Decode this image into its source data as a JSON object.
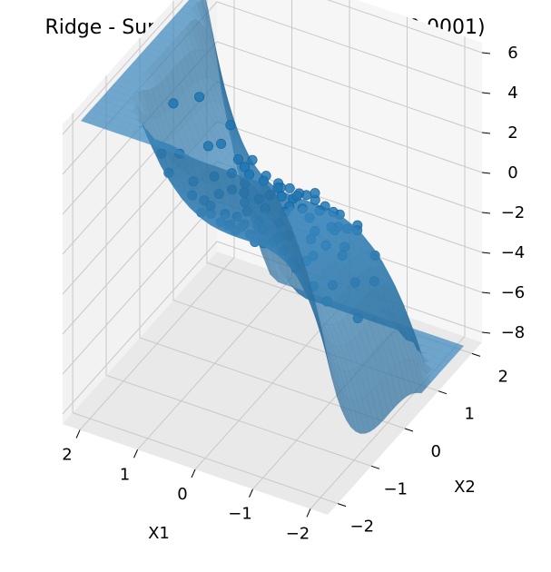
{
  "chart_data": {
    "type": "scatter",
    "subtype": "3d-surface-with-scatter",
    "title": "Ridge - Superficie de predicción (C=0.0001)",
    "xlabel": "X1",
    "ylabel": "X2",
    "zlabel": "",
    "xlim": [
      -2.3,
      2.3
    ],
    "ylim": [
      -2.3,
      2.3
    ],
    "zlim": [
      -8.5,
      6.5
    ],
    "x_ticks": [
      -2,
      -1,
      0,
      1,
      2
    ],
    "y_ticks": [
      -2,
      -1,
      0,
      1,
      2
    ],
    "z_ticks": [
      -8,
      -6,
      -4,
      -2,
      0,
      2,
      4,
      6
    ],
    "x_tick_labels": [
      "−2",
      "−1",
      "0",
      "1",
      "2"
    ],
    "y_tick_labels": [
      "−2",
      "−1",
      "0",
      "1",
      "2"
    ],
    "z_tick_labels": [
      "−8",
      "−6",
      "−4",
      "−2",
      "0",
      "2",
      "4",
      "6"
    ],
    "surface": {
      "model": "z = x^3 - y^3 + 0.35*x^2 - 0.35*y^2",
      "x_range": [
        -2.1,
        2.1
      ],
      "y_range": [
        -2.1,
        2.1
      ],
      "color": "#1f77b4",
      "alpha": 0.7
    },
    "points": {
      "color": "#1f77b4",
      "values": [
        {
          "x": -0.42,
          "y": 0.55,
          "z": 0.4
        },
        {
          "x": 0.31,
          "y": -0.22,
          "z": 0.2
        },
        {
          "x": -0.8,
          "y": -0.37,
          "z": -0.9
        },
        {
          "x": 0.65,
          "y": 0.43,
          "z": 0.5
        },
        {
          "x": 0.05,
          "y": 1.1,
          "z": -1.2
        },
        {
          "x": -1.1,
          "y": 0.2,
          "z": -1.4
        },
        {
          "x": 0.9,
          "y": -0.85,
          "z": 1.6
        },
        {
          "x": -0.25,
          "y": -0.95,
          "z": 0.6
        },
        {
          "x": 0.42,
          "y": 0.9,
          "z": -0.6
        },
        {
          "x": -0.6,
          "y": 0.98,
          "z": -1.3
        },
        {
          "x": 1.2,
          "y": 0.15,
          "z": 1.9
        },
        {
          "x": -0.15,
          "y": 0.12,
          "z": 0.0
        },
        {
          "x": 0.18,
          "y": -0.62,
          "z": 0.3
        },
        {
          "x": -0.92,
          "y": 0.66,
          "z": -1.1
        },
        {
          "x": 0.75,
          "y": -0.3,
          "z": 0.8
        },
        {
          "x": -0.35,
          "y": -0.4,
          "z": -0.1
        },
        {
          "x": 0.55,
          "y": 0.1,
          "z": 0.3
        },
        {
          "x": -1.3,
          "y": -0.6,
          "z": -2.0
        },
        {
          "x": 0.0,
          "y": -1.25,
          "z": 1.8
        },
        {
          "x": 1.0,
          "y": 0.7,
          "z": 0.4
        },
        {
          "x": -0.7,
          "y": -0.05,
          "z": -0.5
        },
        {
          "x": 0.25,
          "y": 0.35,
          "z": 0.0
        },
        {
          "x": -0.05,
          "y": 0.65,
          "z": -0.3
        },
        {
          "x": 0.62,
          "y": -1.05,
          "z": 1.4
        },
        {
          "x": -0.5,
          "y": 0.25,
          "z": -0.2
        },
        {
          "x": 1.35,
          "y": -0.45,
          "z": 2.5
        },
        {
          "x": -1.0,
          "y": -1.0,
          "z": 0.1
        },
        {
          "x": 0.4,
          "y": 1.3,
          "z": -2.1
        },
        {
          "x": -0.2,
          "y": -0.15,
          "z": 0.0
        },
        {
          "x": 0.85,
          "y": 0.25,
          "z": 0.7
        },
        {
          "x": -0.78,
          "y": 0.42,
          "z": -0.7
        },
        {
          "x": 0.12,
          "y": -0.9,
          "z": 0.7
        },
        {
          "x": -1.45,
          "y": 0.55,
          "z": -3.0
        },
        {
          "x": 0.5,
          "y": -0.55,
          "z": 0.5
        },
        {
          "x": -0.3,
          "y": 1.45,
          "z": -3.1
        },
        {
          "x": 1.1,
          "y": -1.2,
          "z": 3.2
        },
        {
          "x": -0.62,
          "y": -0.72,
          "z": 0.1
        },
        {
          "x": 0.3,
          "y": 0.68,
          "z": -0.3
        },
        {
          "x": -1.2,
          "y": 1.0,
          "z": -2.8
        },
        {
          "x": 0.72,
          "y": 1.05,
          "z": -0.8
        },
        {
          "x": -0.1,
          "y": -0.45,
          "z": 0.1
        },
        {
          "x": 0.95,
          "y": -0.1,
          "z": 1.1
        },
        {
          "x": -0.88,
          "y": -0.3,
          "z": -0.7
        },
        {
          "x": 0.15,
          "y": 0.05,
          "z": 0.0
        },
        {
          "x": -0.45,
          "y": 0.8,
          "z": -0.7
        },
        {
          "x": 1.5,
          "y": 0.4,
          "z": 3.6
        },
        {
          "x": -1.6,
          "y": -0.2,
          "z": -3.3
        },
        {
          "x": 0.2,
          "y": -1.5,
          "z": 3.0
        },
        {
          "x": -0.15,
          "y": 1.6,
          "z": -3.7
        },
        {
          "x": 0.45,
          "y": -0.05,
          "z": 0.2
        },
        {
          "x": -0.55,
          "y": -1.2,
          "z": 1.3
        },
        {
          "x": 0.8,
          "y": 0.55,
          "z": 0.5
        },
        {
          "x": -1.05,
          "y": 0.35,
          "z": -1.3
        },
        {
          "x": 0.1,
          "y": 0.45,
          "z": -0.1
        },
        {
          "x": 0.6,
          "y": -0.8,
          "z": 0.9
        },
        {
          "x": -0.32,
          "y": 0.35,
          "z": -0.1
        },
        {
          "x": 1.25,
          "y": 0.9,
          "z": 1.5
        },
        {
          "x": -0.75,
          "y": 1.25,
          "z": -2.2
        },
        {
          "x": 0.35,
          "y": 0.2,
          "z": 0.0
        },
        {
          "x": -1.25,
          "y": -0.35,
          "z": -1.7
        },
        {
          "x": 0.05,
          "y": -0.3,
          "z": 0.1
        },
        {
          "x": 0.7,
          "y": 0.0,
          "z": 0.5
        },
        {
          "x": -0.4,
          "y": -0.65,
          "z": 0.2
        },
        {
          "x": 1.05,
          "y": -0.55,
          "z": 1.6
        },
        {
          "x": -0.95,
          "y": 0.9,
          "z": -1.6
        },
        {
          "x": 0.28,
          "y": 1.0,
          "z": -0.9
        },
        {
          "x": -0.05,
          "y": -0.75,
          "z": 0.4
        },
        {
          "x": 0.5,
          "y": 0.6,
          "z": 0.0
        },
        {
          "x": -0.68,
          "y": 0.1,
          "z": -0.4
        },
        {
          "x": 0.9,
          "y": 0.95,
          "z": 0.0
        },
        {
          "x": -0.22,
          "y": 0.9,
          "z": -0.8
        },
        {
          "x": 1.4,
          "y": -0.9,
          "z": 3.3
        },
        {
          "x": -1.35,
          "y": 0.15,
          "z": -2.4
        },
        {
          "x": 0.22,
          "y": -1.15,
          "z": 1.5
        },
        {
          "x": -0.5,
          "y": 0.55,
          "z": -0.4
        },
        {
          "x": 0.65,
          "y": 0.3,
          "z": 0.3
        },
        {
          "x": -0.85,
          "y": -0.85,
          "z": 0.0
        },
        {
          "x": 0.38,
          "y": -0.4,
          "z": 0.2
        },
        {
          "x": -0.12,
          "y": 0.3,
          "z": -0.1
        },
        {
          "x": 1.15,
          "y": 0.45,
          "z": 1.5
        },
        {
          "x": -1.15,
          "y": -0.75,
          "z": -1.1
        },
        {
          "x": 0.82,
          "y": -0.62,
          "z": 1.0
        },
        {
          "x": -0.3,
          "y": -1.35,
          "z": 2.3
        },
        {
          "x": 0.0,
          "y": 0.8,
          "z": -0.5
        },
        {
          "x": -0.65,
          "y": 0.7,
          "z": -0.6
        },
        {
          "x": 0.55,
          "y": 1.2,
          "z": -1.5
        },
        {
          "x": -0.9,
          "y": 0.05,
          "z": -0.8
        },
        {
          "x": 0.3,
          "y": -0.8,
          "z": 0.6
        },
        {
          "x": 1.6,
          "y": -0.2,
          "z": 4.3
        },
        {
          "x": -0.45,
          "y": -0.3,
          "z": -0.1
        }
      ]
    }
  }
}
